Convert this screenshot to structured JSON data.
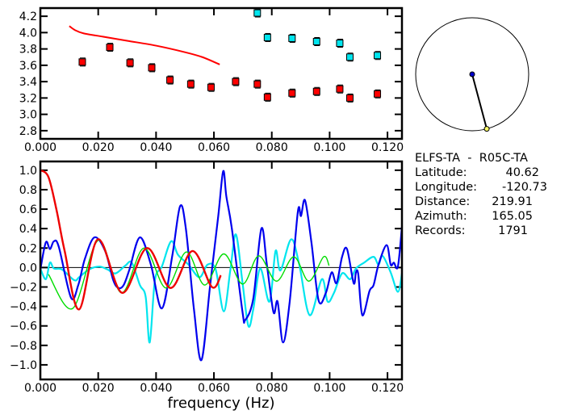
{
  "chart_data": [
    {
      "type": "scatter",
      "title": "",
      "xlabel": "",
      "ylabel": "",
      "xlim": [
        0,
        0.125
      ],
      "ylim": [
        2.7,
        4.3
      ],
      "xticks": [
        "0.000",
        "0.020",
        "0.040",
        "0.060",
        "0.080",
        "0.100",
        "0.120"
      ],
      "yticks": [
        "2.8",
        "3.0",
        "3.2",
        "3.4",
        "3.6",
        "3.8",
        "4.0",
        "4.2"
      ],
      "series": [
        {
          "name": "red-curve",
          "kind": "line",
          "color": "#ff0000",
          "points": [
            [
              0.01,
              4.08
            ],
            [
              0.012,
              4.03
            ],
            [
              0.015,
              3.99
            ],
            [
              0.02,
              3.96
            ],
            [
              0.03,
              3.9
            ],
            [
              0.04,
              3.84
            ],
            [
              0.05,
              3.76
            ],
            [
              0.056,
              3.7
            ],
            [
              0.062,
              3.61
            ]
          ]
        },
        {
          "name": "red-squares",
          "kind": "markers",
          "color": "#ff0000",
          "points": [
            [
              0.0145,
              3.64
            ],
            [
              0.024,
              3.82
            ],
            [
              0.031,
              3.63
            ],
            [
              0.0385,
              3.57
            ],
            [
              0.0448,
              3.42
            ],
            [
              0.052,
              3.37
            ],
            [
              0.059,
              3.33
            ],
            [
              0.0675,
              3.4
            ],
            [
              0.075,
              3.37
            ],
            [
              0.0785,
              3.21
            ],
            [
              0.087,
              3.26
            ],
            [
              0.0955,
              3.28
            ],
            [
              0.1035,
              3.31
            ],
            [
              0.107,
              3.2
            ],
            [
              0.1165,
              3.25
            ]
          ]
        },
        {
          "name": "cyan-squares",
          "kind": "markers",
          "color": "#00e5ee",
          "points": [
            [
              0.075,
              4.24
            ],
            [
              0.0785,
              3.94
            ],
            [
              0.087,
              3.93
            ],
            [
              0.0955,
              3.89
            ],
            [
              0.1035,
              3.87
            ],
            [
              0.107,
              3.7
            ],
            [
              0.1165,
              3.72
            ]
          ]
        }
      ]
    },
    {
      "type": "line",
      "title": "",
      "xlabel": "frequency (Hz)",
      "ylabel": "",
      "xlim": [
        0,
        0.125
      ],
      "ylim": [
        -1.15,
        1.09
      ],
      "xticks": [
        "0.000",
        "0.020",
        "0.040",
        "0.060",
        "0.080",
        "0.100",
        "0.120"
      ],
      "yticks": [
        "-1.0",
        "-0.8",
        "-0.6",
        "-0.4",
        "-0.2",
        "0.0",
        "0.2",
        "0.4",
        "0.6",
        "0.8",
        "1.0"
      ],
      "series": [
        {
          "name": "cyan",
          "color": "#00e5ee",
          "width": 2.2,
          "points": [
            [
              0,
              -0.01
            ],
            [
              0.0019,
              -0.12
            ],
            [
              0.0033,
              0.05
            ],
            [
              0.0047,
              -0.01
            ],
            [
              0.0075,
              -0.02
            ],
            [
              0.0117,
              -0.13
            ],
            [
              0.0134,
              -0.1
            ],
            [
              0.0168,
              -0.02
            ],
            [
              0.0204,
              0.01
            ],
            [
              0.0232,
              -0.02
            ],
            [
              0.026,
              -0.06
            ],
            [
              0.0294,
              0.02
            ],
            [
              0.0316,
              0.05
            ],
            [
              0.0344,
              -0.18
            ],
            [
              0.0364,
              -0.3
            ],
            [
              0.0378,
              -0.77
            ],
            [
              0.0396,
              -0.13
            ],
            [
              0.042,
              0.01
            ],
            [
              0.0452,
              0.27
            ],
            [
              0.0476,
              0.13
            ],
            [
              0.0512,
              0.03
            ],
            [
              0.055,
              -0.1
            ],
            [
              0.0578,
              0.03
            ],
            [
              0.0606,
              -0.02
            ],
            [
              0.0634,
              -0.45
            ],
            [
              0.0657,
              -0.02
            ],
            [
              0.0676,
              0.34
            ],
            [
              0.0699,
              -0.16
            ],
            [
              0.0719,
              -0.6
            ],
            [
              0.0736,
              -0.43
            ],
            [
              0.076,
              -0.01
            ],
            [
              0.0792,
              -0.35
            ],
            [
              0.0813,
              0.17
            ],
            [
              0.083,
              -0.03
            ],
            [
              0.0867,
              0.29
            ],
            [
              0.0895,
              0.03
            ],
            [
              0.0931,
              -0.49
            ],
            [
              0.0973,
              -0.12
            ],
            [
              0.0993,
              -0.35
            ],
            [
              0.1015,
              -0.26
            ],
            [
              0.1043,
              -0.06
            ],
            [
              0.1071,
              -0.12
            ],
            [
              0.1091,
              -0.01
            ],
            [
              0.1119,
              0.05
            ],
            [
              0.1152,
              0.11
            ],
            [
              0.1169,
              0.03
            ],
            [
              0.1183,
              0.12
            ],
            [
              0.1211,
              -0.05
            ],
            [
              0.1236,
              -0.25
            ],
            [
              0.125,
              -0.06
            ]
          ]
        },
        {
          "name": "blue",
          "color": "#0000ee",
          "width": 2.2,
          "points": [
            [
              0,
              -0.02
            ],
            [
              0.0019,
              0.26
            ],
            [
              0.0033,
              0.19
            ],
            [
              0.0047,
              0.27
            ],
            [
              0.0064,
              0.21
            ],
            [
              0.0106,
              -0.31
            ],
            [
              0.0131,
              -0.18
            ],
            [
              0.0154,
              0.09
            ],
            [
              0.0187,
              0.31
            ],
            [
              0.0224,
              0.17
            ],
            [
              0.0252,
              -0.13
            ],
            [
              0.027,
              -0.21
            ],
            [
              0.0288,
              -0.18
            ],
            [
              0.0308,
              -0.02
            ],
            [
              0.0344,
              0.31
            ],
            [
              0.0382,
              0.03
            ],
            [
              0.042,
              -0.42
            ],
            [
              0.0456,
              0.12
            ],
            [
              0.0483,
              0.63
            ],
            [
              0.0503,
              0.4
            ],
            [
              0.0531,
              -0.43
            ],
            [
              0.0557,
              -0.95
            ],
            [
              0.0587,
              -0.18
            ],
            [
              0.0615,
              0.53
            ],
            [
              0.0632,
              0.99
            ],
            [
              0.0643,
              0.73
            ],
            [
              0.0662,
              0.4
            ],
            [
              0.0699,
              -0.46
            ],
            [
              0.0708,
              -0.54
            ],
            [
              0.0736,
              -0.32
            ],
            [
              0.0764,
              0.4
            ],
            [
              0.0783,
              0.03
            ],
            [
              0.0806,
              -0.46
            ],
            [
              0.082,
              -0.35
            ],
            [
              0.0839,
              -0.77
            ],
            [
              0.0862,
              -0.35
            ],
            [
              0.089,
              0.57
            ],
            [
              0.0901,
              0.53
            ],
            [
              0.0915,
              0.69
            ],
            [
              0.0937,
              0.26
            ],
            [
              0.0962,
              -0.34
            ],
            [
              0.0987,
              -0.26
            ],
            [
              0.1007,
              -0.05
            ],
            [
              0.1024,
              -0.16
            ],
            [
              0.1043,
              0.11
            ],
            [
              0.106,
              0.19
            ],
            [
              0.1083,
              -0.16
            ],
            [
              0.1091,
              -0.05
            ],
            [
              0.1099,
              -0.07
            ],
            [
              0.1113,
              -0.49
            ],
            [
              0.1138,
              -0.24
            ],
            [
              0.1152,
              -0.18
            ],
            [
              0.1169,
              0.03
            ],
            [
              0.1197,
              0.23
            ],
            [
              0.1211,
              0.03
            ],
            [
              0.1222,
              0.05
            ],
            [
              0.1236,
              0.01
            ],
            [
              0.125,
              0.42
            ]
          ]
        },
        {
          "name": "green",
          "color": "#00dd00",
          "width": 1.4,
          "points": [
            [
              0.0028,
              -0.07
            ],
            [
              0.0112,
              -0.42
            ],
            [
              0.0201,
              0.28
            ],
            [
              0.028,
              -0.26
            ],
            [
              0.0358,
              0.2
            ],
            [
              0.0434,
              -0.21
            ],
            [
              0.0505,
              0.16
            ],
            [
              0.0568,
              -0.18
            ],
            [
              0.0634,
              0.14
            ],
            [
              0.0699,
              -0.17
            ],
            [
              0.0755,
              0.12
            ],
            [
              0.0816,
              -0.14
            ],
            [
              0.0876,
              0.11
            ],
            [
              0.0928,
              -0.14
            ],
            [
              0.0979,
              0.11
            ],
            [
              0.0998,
              0.02
            ]
          ]
        },
        {
          "name": "red",
          "color": "#ee0000",
          "width": 2.4,
          "points": [
            [
              0,
              1.0
            ],
            [
              0.0028,
              0.93
            ],
            [
              0.0056,
              0.59
            ],
            [
              0.0084,
              0.17
            ],
            [
              0.0134,
              -0.43
            ],
            [
              0.0199,
              0.29
            ],
            [
              0.0283,
              -0.26
            ],
            [
              0.0369,
              0.2
            ],
            [
              0.045,
              -0.21
            ],
            [
              0.0526,
              0.17
            ],
            [
              0.0593,
              -0.2
            ],
            [
              0.0624,
              -0.08
            ]
          ]
        }
      ]
    }
  ],
  "azimuth_plot": {
    "azimuth_deg": 165.05,
    "center_color": "#0000cc",
    "station_color": "#ffff66"
  },
  "info": {
    "pair": "ELFS-TA  -  R05C-TA",
    "rows": [
      {
        "label": "Latitude:",
        "value": "40.62"
      },
      {
        "label": "Longitude:",
        "value": "-120.73"
      },
      {
        "label": "Distance:",
        "value": "219.91"
      },
      {
        "label": "Azimuth:",
        "value": "165.05"
      },
      {
        "label": "Records:",
        "value": "1791"
      }
    ]
  }
}
